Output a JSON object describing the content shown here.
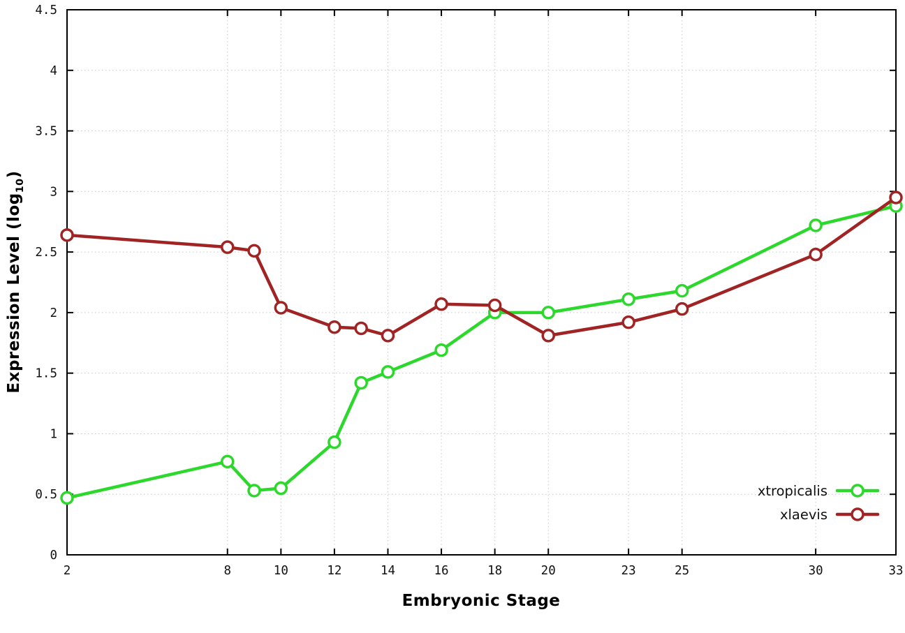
{
  "chart_data": {
    "type": "line",
    "title": "",
    "xlabel": "Embryonic Stage",
    "ylabel": "Expression Level (log10)",
    "ylabel_parts": {
      "main": "Expression Level (log",
      "sub": "10",
      "close": ")"
    },
    "xlim": [
      2,
      33
    ],
    "ylim": [
      0,
      4.5
    ],
    "x_ticks": [
      2,
      8,
      10,
      12,
      14,
      16,
      18,
      20,
      23,
      25,
      30,
      33
    ],
    "y_ticks": [
      0,
      0.5,
      1,
      1.5,
      2,
      2.5,
      3,
      3.5,
      4,
      4.5
    ],
    "grid": true,
    "legend_position": "bottom-right",
    "background_color": "#ffffff",
    "grid_color": "#c8c8c8",
    "border_color": "#000000",
    "x": [
      2,
      8,
      9,
      10,
      12,
      13,
      14,
      16,
      18,
      20,
      23,
      25,
      30,
      33
    ],
    "series": [
      {
        "name": "xtropicalis",
        "color": "#2bd82b",
        "values": [
          0.47,
          0.77,
          0.53,
          0.55,
          0.93,
          1.42,
          1.51,
          1.69,
          2.0,
          2.0,
          2.11,
          2.18,
          2.72,
          2.88
        ]
      },
      {
        "name": "xlaevis",
        "color": "#a02424",
        "values": [
          2.64,
          2.54,
          2.51,
          2.04,
          1.88,
          1.87,
          1.81,
          2.07,
          2.06,
          1.81,
          1.92,
          2.03,
          2.48,
          2.95
        ]
      }
    ]
  }
}
